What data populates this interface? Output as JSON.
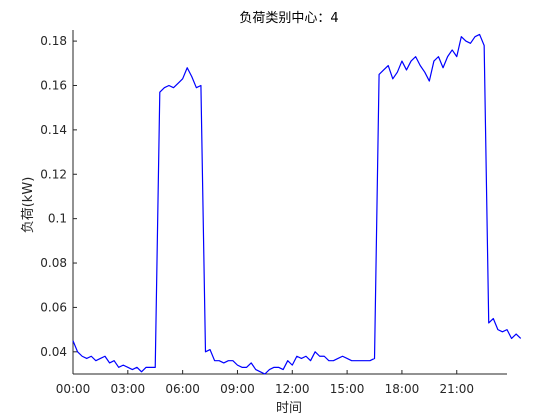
{
  "chart_data": {
    "type": "line",
    "title": "负荷类别中心：4",
    "xlabel": "时间",
    "ylabel": "负荷(kW)",
    "xlim": [
      0,
      23.75
    ],
    "ylim": [
      0.03,
      0.185
    ],
    "x_ticks": [
      0,
      3,
      6,
      9,
      12,
      15,
      18,
      21
    ],
    "x_tick_labels": [
      "00:00",
      "03:00",
      "06:00",
      "09:00",
      "12:00",
      "15:00",
      "18:00",
      "21:00"
    ],
    "y_ticks": [
      0.04,
      0.06,
      0.08,
      0.1,
      0.12,
      0.14,
      0.16,
      0.18
    ],
    "y_tick_labels": [
      "0.04",
      "0.06",
      "0.08",
      "0.1",
      "0.12",
      "0.14",
      "0.16",
      "0.18"
    ],
    "grid": false,
    "line_color": "#0000ff",
    "x_step_hours": 0.25,
    "series": [
      {
        "values": [
          0.045,
          0.04,
          0.038,
          0.037,
          0.038,
          0.036,
          0.037,
          0.038,
          0.035,
          0.036,
          0.033,
          0.034,
          0.033,
          0.032,
          0.033,
          0.031,
          0.033,
          0.033,
          0.033,
          0.157,
          0.159,
          0.16,
          0.159,
          0.161,
          0.163,
          0.168,
          0.164,
          0.159,
          0.16,
          0.04,
          0.041,
          0.036,
          0.036,
          0.035,
          0.036,
          0.036,
          0.034,
          0.033,
          0.033,
          0.035,
          0.032,
          0.031,
          0.03,
          0.032,
          0.033,
          0.033,
          0.032,
          0.036,
          0.034,
          0.038,
          0.037,
          0.038,
          0.036,
          0.04,
          0.038,
          0.038,
          0.036,
          0.036,
          0.037,
          0.038,
          0.037,
          0.036,
          0.036,
          0.036,
          0.036,
          0.036,
          0.037,
          0.165,
          0.167,
          0.169,
          0.163,
          0.166,
          0.171,
          0.167,
          0.171,
          0.173,
          0.169,
          0.166,
          0.162,
          0.171,
          0.173,
          0.168,
          0.173,
          0.176,
          0.173,
          0.182,
          0.18,
          0.179,
          0.182,
          0.183,
          0.178,
          0.053,
          0.055,
          0.05,
          0.049,
          0.05,
          0.046,
          0.048,
          0.046
        ]
      }
    ]
  }
}
